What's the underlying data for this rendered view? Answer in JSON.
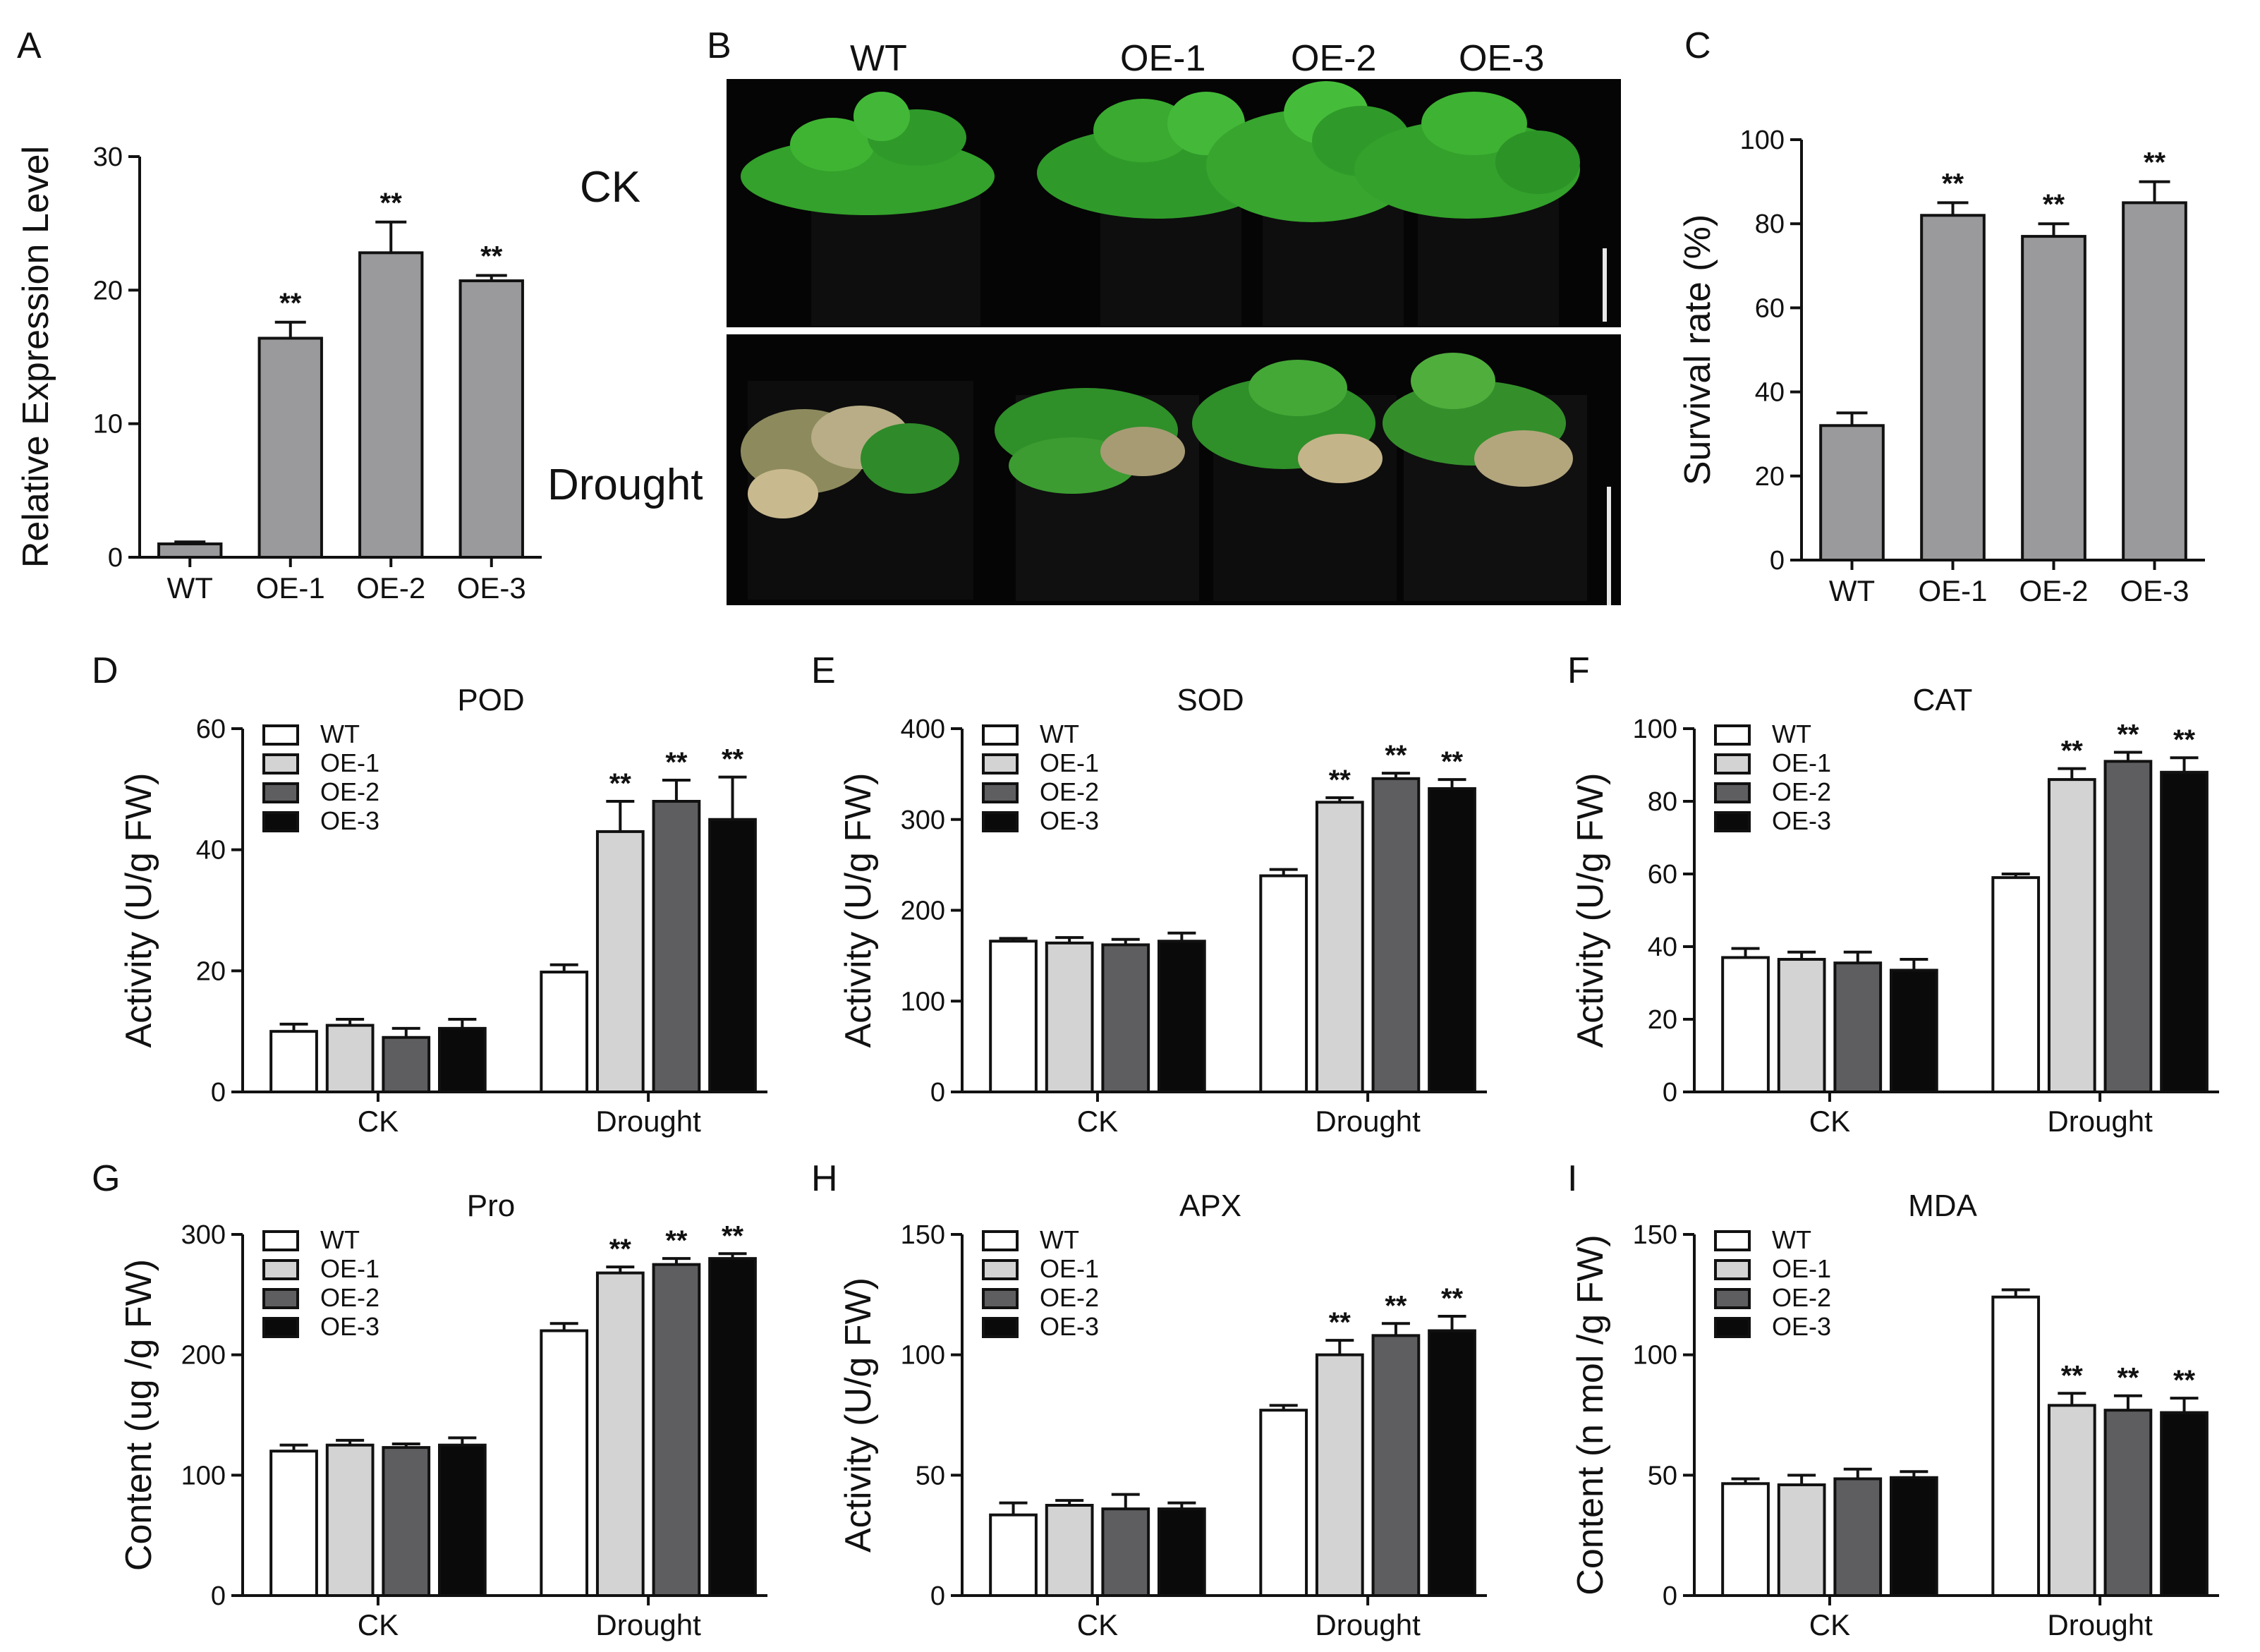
{
  "panel_letters": [
    "A",
    "B",
    "C",
    "D",
    "E",
    "F",
    "G",
    "H",
    "I"
  ],
  "colors": {
    "gray_bar": "#9a9a9c",
    "WT": "#ffffff",
    "OE-1": "#d3d3d3",
    "OE-2": "#5e5e60",
    "OE-3": "#0a0a0a",
    "photo_bg": "#050505",
    "leaf": "#2f9a2a"
  },
  "photo": {
    "labels": [
      "WT",
      "OE-1",
      "OE-2",
      "OE-3"
    ],
    "row_labels": [
      "CK",
      "Drought"
    ]
  },
  "chart_data": [
    {
      "id": "A",
      "type": "bar",
      "ylabel": "Relative Expression Level",
      "categories": [
        "WT",
        "OE-1",
        "OE-2",
        "OE-3"
      ],
      "values": [
        1,
        16.4,
        22.8,
        20.7
      ],
      "errors": [
        0.15,
        1.2,
        2.3,
        0.4
      ],
      "significance": [
        "",
        "**",
        "**",
        "**"
      ],
      "ylim": [
        0,
        30
      ],
      "yticks": [
        0,
        10,
        20,
        30
      ]
    },
    {
      "id": "C",
      "type": "bar",
      "ylabel": "Survival rate (%)",
      "categories": [
        "WT",
        "OE-1",
        "OE-2",
        "OE-3"
      ],
      "values": [
        32,
        82,
        77,
        85
      ],
      "errors": [
        3,
        3,
        3,
        5
      ],
      "significance": [
        "",
        "**",
        "**",
        "**"
      ],
      "ylim": [
        0,
        100
      ],
      "yticks": [
        0,
        20,
        40,
        60,
        80,
        100
      ]
    },
    {
      "id": "D",
      "type": "grouped_bar",
      "title": "POD",
      "ylabel": "Activity (U/g FW)",
      "groups": [
        "CK",
        "Drought"
      ],
      "legend": [
        "WT",
        "OE-1",
        "OE-2",
        "OE-3"
      ],
      "legend_position": "top-left",
      "series": [
        {
          "name": "WT",
          "values": [
            10,
            19.8
          ],
          "errors": [
            1.2,
            1.2
          ]
        },
        {
          "name": "OE-1",
          "values": [
            11,
            43
          ],
          "errors": [
            1,
            5
          ]
        },
        {
          "name": "OE-2",
          "values": [
            9,
            48
          ],
          "errors": [
            1.5,
            3.5
          ]
        },
        {
          "name": "OE-3",
          "values": [
            10.5,
            45
          ],
          "errors": [
            1.5,
            7
          ]
        }
      ],
      "significance": [
        [
          "",
          "",
          "",
          ""
        ],
        [
          "",
          "**",
          "**",
          "**"
        ]
      ],
      "ylim": [
        0,
        60
      ],
      "yticks": [
        0,
        20,
        40,
        60
      ]
    },
    {
      "id": "E",
      "type": "grouped_bar",
      "title": "SOD",
      "ylabel": "Activity (U/g FW)",
      "groups": [
        "CK",
        "Drought"
      ],
      "legend": [
        "WT",
        "OE-1",
        "OE-2",
        "OE-3"
      ],
      "legend_position": "top-left",
      "series": [
        {
          "name": "WT",
          "values": [
            166,
            238
          ],
          "errors": [
            3,
            7
          ]
        },
        {
          "name": "OE-1",
          "values": [
            164,
            319
          ],
          "errors": [
            6,
            5
          ]
        },
        {
          "name": "OE-2",
          "values": [
            162,
            345
          ],
          "errors": [
            6,
            6
          ]
        },
        {
          "name": "OE-3",
          "values": [
            166,
            334
          ],
          "errors": [
            9,
            10
          ]
        }
      ],
      "significance": [
        [
          "",
          "",
          "",
          ""
        ],
        [
          "",
          "**",
          "**",
          "**"
        ]
      ],
      "ylim": [
        0,
        400
      ],
      "yticks": [
        0,
        100,
        200,
        300,
        400
      ]
    },
    {
      "id": "F",
      "type": "grouped_bar",
      "title": "CAT",
      "ylabel": "Activity (U/g FW)",
      "groups": [
        "CK",
        "Drought"
      ],
      "legend": [
        "WT",
        "OE-1",
        "OE-2",
        "OE-3"
      ],
      "legend_position": "top-left",
      "series": [
        {
          "name": "WT",
          "values": [
            37,
            59
          ],
          "errors": [
            2.5,
            1
          ]
        },
        {
          "name": "OE-1",
          "values": [
            36.5,
            86
          ],
          "errors": [
            2,
            3
          ]
        },
        {
          "name": "OE-2",
          "values": [
            35.5,
            91
          ],
          "errors": [
            3,
            2.5
          ]
        },
        {
          "name": "OE-3",
          "values": [
            33.5,
            88
          ],
          "errors": [
            3,
            4
          ]
        }
      ],
      "significance": [
        [
          "",
          "",
          "",
          ""
        ],
        [
          "",
          "**",
          "**",
          "**"
        ]
      ],
      "ylim": [
        0,
        100
      ],
      "yticks": [
        0,
        20,
        40,
        60,
        80,
        100
      ]
    },
    {
      "id": "G",
      "type": "grouped_bar",
      "title": "Pro",
      "ylabel": "Content (ug /g FW)",
      "groups": [
        "CK",
        "Drought"
      ],
      "legend": [
        "WT",
        "OE-1",
        "OE-2",
        "OE-3"
      ],
      "legend_position": "top-left",
      "series": [
        {
          "name": "WT",
          "values": [
            120,
            220
          ],
          "errors": [
            5,
            6
          ]
        },
        {
          "name": "OE-1",
          "values": [
            125,
            268
          ],
          "errors": [
            4,
            5
          ]
        },
        {
          "name": "OE-2",
          "values": [
            123,
            275
          ],
          "errors": [
            3,
            5
          ]
        },
        {
          "name": "OE-3",
          "values": [
            125,
            280
          ],
          "errors": [
            6,
            4
          ]
        }
      ],
      "significance": [
        [
          "",
          "",
          "",
          ""
        ],
        [
          "",
          "**",
          "**",
          "**"
        ]
      ],
      "ylim": [
        0,
        300
      ],
      "yticks": [
        0,
        100,
        200,
        300
      ]
    },
    {
      "id": "H",
      "type": "grouped_bar",
      "title": "APX",
      "ylabel": "Activity (U/g FW)",
      "groups": [
        "CK",
        "Drought"
      ],
      "legend": [
        "WT",
        "OE-1",
        "OE-2",
        "OE-3"
      ],
      "legend_position": "top-left",
      "series": [
        {
          "name": "WT",
          "values": [
            33.5,
            77
          ],
          "errors": [
            5,
            2
          ]
        },
        {
          "name": "OE-1",
          "values": [
            37.5,
            100
          ],
          "errors": [
            2,
            6
          ]
        },
        {
          "name": "OE-2",
          "values": [
            36,
            108
          ],
          "errors": [
            6,
            5
          ]
        },
        {
          "name": "OE-3",
          "values": [
            36,
            110
          ],
          "errors": [
            2.5,
            6
          ]
        }
      ],
      "significance": [
        [
          "",
          "",
          "",
          ""
        ],
        [
          "",
          "**",
          "**",
          "**"
        ]
      ],
      "ylim": [
        0,
        150
      ],
      "yticks": [
        0,
        50,
        100,
        150
      ]
    },
    {
      "id": "I",
      "type": "grouped_bar",
      "title": "MDA",
      "ylabel": "Content (n mol /g FW)",
      "groups": [
        "CK",
        "Drought"
      ],
      "legend": [
        "WT",
        "OE-1",
        "OE-2",
        "OE-3"
      ],
      "legend_position": "top-left",
      "series": [
        {
          "name": "WT",
          "values": [
            46.5,
            124
          ],
          "errors": [
            2,
            3
          ]
        },
        {
          "name": "OE-1",
          "values": [
            46,
            79
          ],
          "errors": [
            4,
            5
          ]
        },
        {
          "name": "OE-2",
          "values": [
            48.5,
            77
          ],
          "errors": [
            4,
            6
          ]
        },
        {
          "name": "OE-3",
          "values": [
            49,
            76
          ],
          "errors": [
            2.5,
            6
          ]
        }
      ],
      "significance": [
        [
          "",
          "",
          "",
          ""
        ],
        [
          "",
          "**",
          "**",
          "**"
        ]
      ],
      "ylim": [
        0,
        150
      ],
      "yticks": [
        0,
        50,
        100,
        150
      ]
    }
  ]
}
